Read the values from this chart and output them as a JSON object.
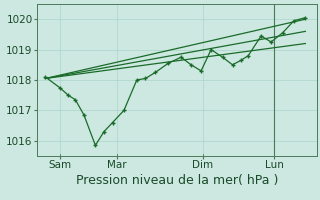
{
  "background_color": "#cce8e0",
  "grid_color": "#aad4cc",
  "line_color": "#1a6b2a",
  "spine_color": "#4a7a5a",
  "tick_color": "#4a7a5a",
  "text_color": "#1a4a2a",
  "ylim": [
    1015.5,
    1020.5
  ],
  "yticks": [
    1016,
    1017,
    1018,
    1019,
    1020
  ],
  "xlabel": "Pression niveau de la mer( hPa )",
  "xlabel_fontsize": 9,
  "tick_fontsize": 7.5,
  "x_ticks_pos": [
    0.5,
    2.5,
    5.5,
    8.0
  ],
  "x_tick_labels": [
    "Sam",
    "Mar",
    "Dim",
    "Lun"
  ],
  "xlim": [
    -0.3,
    9.5
  ],
  "vline_x": 8.0,
  "line1_x": [
    0.0,
    0.5,
    0.8,
    1.05,
    1.35,
    1.75,
    2.05,
    2.35,
    2.75,
    3.2,
    3.5,
    3.85,
    4.3,
    4.75,
    5.1,
    5.45,
    5.8,
    6.2,
    6.55,
    6.85,
    7.1,
    7.55,
    7.9,
    8.3,
    8.7,
    9.1
  ],
  "line1_y": [
    1018.1,
    1017.75,
    1017.5,
    1017.35,
    1016.85,
    1015.85,
    1016.3,
    1016.6,
    1017.0,
    1018.0,
    1018.05,
    1018.25,
    1018.55,
    1018.75,
    1018.5,
    1018.3,
    1019.0,
    1018.75,
    1018.5,
    1018.65,
    1018.8,
    1019.45,
    1019.25,
    1019.55,
    1019.95,
    1020.05
  ],
  "line2_x": [
    0.0,
    9.1
  ],
  "line2_y": [
    1018.05,
    1020.0
  ],
  "line3_x": [
    0.0,
    9.1
  ],
  "line3_y": [
    1018.05,
    1019.6
  ],
  "line4_x": [
    0.0,
    9.1
  ],
  "line4_y": [
    1018.05,
    1019.2
  ]
}
